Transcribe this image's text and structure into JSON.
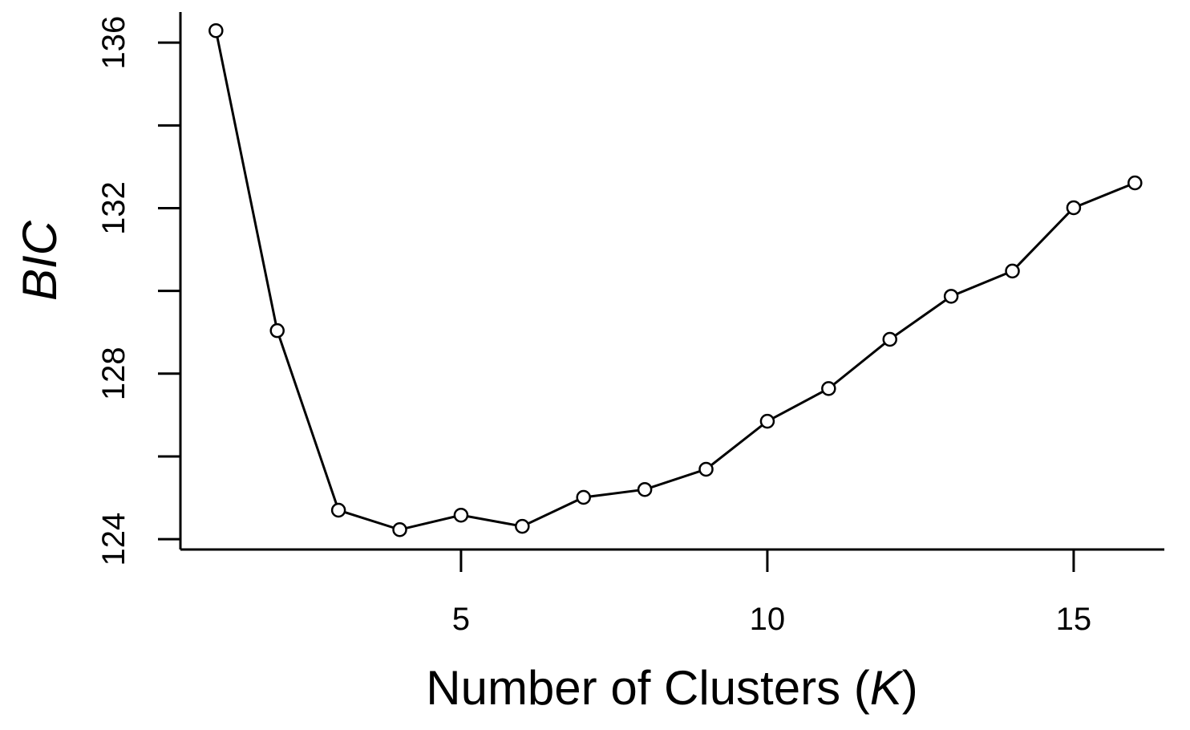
{
  "chart_data": {
    "type": "line",
    "x_label": [
      "Number of Clusters (",
      "K",
      ")"
    ],
    "y_label": "BIC",
    "x": [
      1,
      2,
      3,
      4,
      5,
      6,
      7,
      8,
      9,
      10,
      11,
      12,
      13,
      14,
      15,
      16
    ],
    "series": [
      {
        "color": "#000000",
        "values": [
          136.29,
          129.04,
          124.7,
          124.23,
          124.58,
          124.31,
          125.01,
          125.2,
          125.69,
          126.85,
          127.64,
          128.83,
          129.87,
          130.48,
          132.01,
          132.61
        ]
      }
    ],
    "xlim": [
      0.42,
      16.48
    ],
    "xticks": [
      5,
      10,
      15
    ],
    "ylim": [
      123.75,
      136.74
    ],
    "yticks": [
      124,
      128,
      132,
      136
    ],
    "yminorticks": [
      126,
      130,
      134
    ],
    "markers": "open-circle"
  }
}
